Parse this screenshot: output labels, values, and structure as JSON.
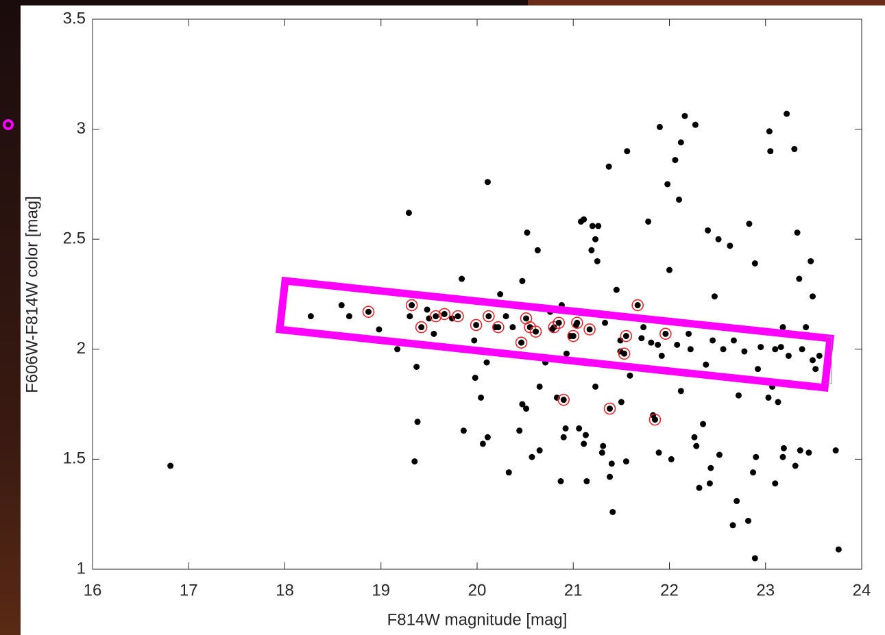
{
  "chart_data": {
    "type": "scatter",
    "xlabel": "F814W magnitude [mag]",
    "ylabel": "F606W-F814W color [mag]",
    "xlim": [
      16,
      24
    ],
    "xticks": [
      16,
      17,
      18,
      19,
      20,
      21,
      22,
      23,
      24
    ],
    "ylim": [
      1,
      3.5
    ],
    "yticks": [
      1,
      1.5,
      2,
      2.5,
      3,
      3.5
    ],
    "series": [
      {
        "color": "#000000",
        "x": [
          16.81,
          18.27,
          18.59,
          18.67,
          18.98,
          19.17,
          19.29,
          19.3,
          19.37,
          19.35,
          19.38,
          19.48,
          19.5,
          19.55,
          19.74,
          19.84,
          19.86,
          19.98,
          19.97,
          20.04,
          20.06,
          20.11,
          20.11,
          20.1,
          20.19,
          20.24,
          20.3,
          20.33,
          20.37,
          20.44,
          20.47,
          20.47,
          20.51,
          20.52,
          20.57,
          20.63,
          20.65,
          20.65,
          20.71,
          20.76,
          20.78,
          20.83,
          20.87,
          20.88,
          20.93,
          20.92,
          20.9,
          20.97,
          21.03,
          21.08,
          21.11,
          21.06,
          21.11,
          21.14,
          21.13,
          21.2,
          21.23,
          21.19,
          21.25,
          21.26,
          21.23,
          21.3,
          21.31,
          21.33,
          21.37,
          21.38,
          21.41,
          21.4,
          21.45,
          21.49,
          21.49,
          21.5,
          21.56,
          21.59,
          21.55,
          21.71,
          21.73,
          21.78,
          21.89,
          21.83,
          21.9,
          21.92,
          22.0,
          21.98,
          22.06,
          22.1,
          22.12,
          22.12,
          22.16,
          22.27,
          22.02,
          22.22,
          22.28,
          22.26,
          22.31,
          22.35,
          22.38,
          22.4,
          22.42,
          22.43,
          22.47,
          22.51,
          22.52,
          22.63,
          22.66,
          22.7,
          22.72,
          22.83,
          22.82,
          22.87,
          22.89,
          22.9,
          22.89,
          22.92,
          23.03,
          23.05,
          23.04,
          23.07,
          23.1,
          23.13,
          23.16,
          23.18,
          23.19,
          23.18,
          23.22,
          23.3,
          23.31,
          23.33,
          23.35,
          23.36,
          23.42,
          23.45,
          23.47,
          23.49,
          23.73,
          23.76,
          22.2,
          22.45,
          22.56,
          22.67,
          22.78,
          22.95,
          23.1,
          23.24,
          23.38,
          23.49,
          23.52,
          23.56,
          21.81,
          21.88,
          22.08
        ],
        "values": [
          1.47,
          2.15,
          2.2,
          2.15,
          2.09,
          2.0,
          2.62,
          2.15,
          1.92,
          1.49,
          1.67,
          2.18,
          2.14,
          2.07,
          2.14,
          2.32,
          1.63,
          1.87,
          2.04,
          1.78,
          1.57,
          2.76,
          1.6,
          1.94,
          2.1,
          2.25,
          2.15,
          1.44,
          2.1,
          1.63,
          2.31,
          1.75,
          1.73,
          2.53,
          1.51,
          2.45,
          1.54,
          1.83,
          1.94,
          2.17,
          2.09,
          1.78,
          1.4,
          2.2,
          1.98,
          1.64,
          1.6,
          2.06,
          2.11,
          2.58,
          2.59,
          1.64,
          1.57,
          1.4,
          1.61,
          2.56,
          2.5,
          2.45,
          2.4,
          2.56,
          1.83,
          1.53,
          1.56,
          2.12,
          2.83,
          1.42,
          1.26,
          1.48,
          2.27,
          2.04,
          1.99,
          1.76,
          2.9,
          1.88,
          1.49,
          2.05,
          2.1,
          2.58,
          1.53,
          1.7,
          3.01,
          1.97,
          2.36,
          2.75,
          2.86,
          2.68,
          1.81,
          2.94,
          3.06,
          3.02,
          1.5,
          2.0,
          1.56,
          1.6,
          1.37,
          1.66,
          1.93,
          2.54,
          1.39,
          1.46,
          2.24,
          2.5,
          1.52,
          2.47,
          1.2,
          1.31,
          1.79,
          2.57,
          1.22,
          1.44,
          2.39,
          1.51,
          1.05,
          1.91,
          1.78,
          2.9,
          2.99,
          1.83,
          1.39,
          1.76,
          2.01,
          2.1,
          1.55,
          1.51,
          3.07,
          2.91,
          1.47,
          2.53,
          2.32,
          1.54,
          2.1,
          1.53,
          2.4,
          2.24,
          1.54,
          1.09,
          2.07,
          2.04,
          2.0,
          2.04,
          1.99,
          2.01,
          2.0,
          1.97,
          2.0,
          1.95,
          1.91,
          1.97,
          2.03,
          2.02,
          2.02
        ]
      },
      {
        "color": "#e8262b",
        "x": [
          18.87,
          19.32,
          19.42,
          19.57,
          19.66,
          19.8,
          19.99,
          20.12,
          20.22,
          20.46,
          20.51,
          20.55,
          20.61,
          20.8,
          20.85,
          20.9,
          21.0,
          21.04,
          21.17,
          21.38,
          21.53,
          21.55,
          21.67,
          21.85,
          21.96
        ],
        "values": [
          2.17,
          2.2,
          2.1,
          2.15,
          2.16,
          2.15,
          2.11,
          2.15,
          2.1,
          2.03,
          2.14,
          2.1,
          2.08,
          2.1,
          2.12,
          1.77,
          2.06,
          2.12,
          2.09,
          1.73,
          1.98,
          2.06,
          2.2,
          1.68,
          2.07
        ]
      }
    ]
  }
}
